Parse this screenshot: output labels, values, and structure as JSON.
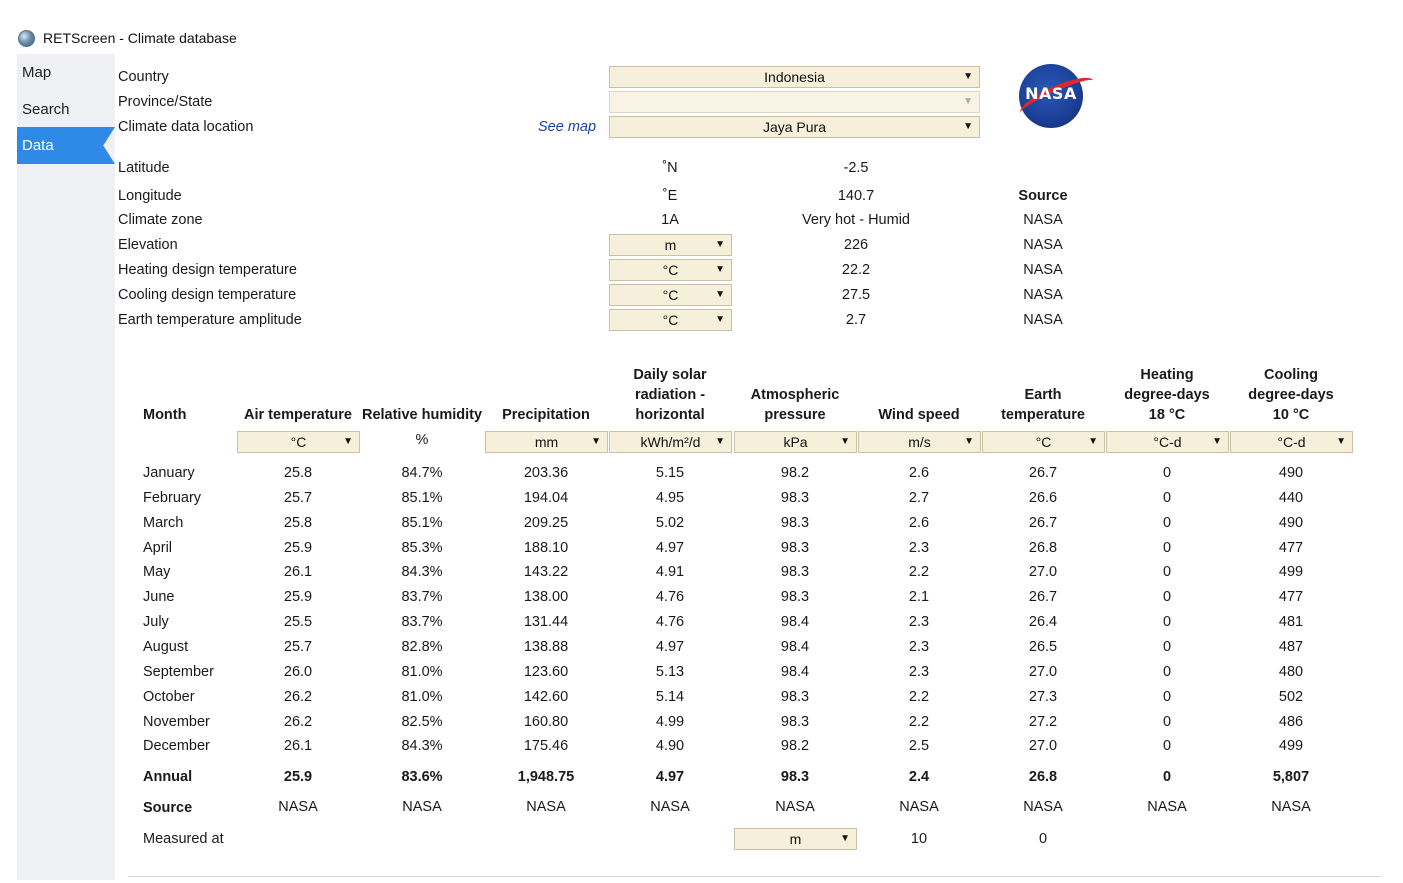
{
  "window": {
    "title": "RETScreen - Climate database",
    "icon": "globe-icon"
  },
  "sidebar": {
    "items": [
      {
        "label": "Map",
        "active": false
      },
      {
        "label": "Search",
        "active": false
      },
      {
        "label": "Data",
        "active": true
      }
    ]
  },
  "location": {
    "country_label": "Country",
    "country_value": "Indonesia",
    "province_label": "Province/State",
    "province_value": "",
    "climate_location_label": "Climate data location",
    "see_map": "See map",
    "climate_location_value": "Jaya Pura",
    "logo_text": "NASA"
  },
  "info_rows": [
    {
      "label": "Latitude",
      "unit": "˚N",
      "value": "-2.5",
      "source": ""
    },
    {
      "label": "Longitude",
      "unit": "˚E",
      "value": "140.7",
      "source": ""
    },
    {
      "label": "Climate zone",
      "unit": "1A",
      "value": "Very hot - Humid",
      "source": "NASA"
    },
    {
      "label": "Elevation",
      "unit": "m",
      "value": "226",
      "source": "NASA"
    },
    {
      "label": "Heating design temperature",
      "unit": "°C",
      "value": "22.2",
      "source": "NASA"
    },
    {
      "label": "Cooling design temperature",
      "unit": "°C",
      "value": "27.5",
      "source": "NASA"
    },
    {
      "label": "Earth temperature amplitude",
      "unit": "°C",
      "value": "2.7",
      "source": "NASA"
    }
  ],
  "source_header": "Source",
  "table": {
    "month_header": "Month",
    "columns": [
      {
        "h1": "",
        "h2": "",
        "h3": "Air temperature",
        "unit": "°C",
        "dropdown": true
      },
      {
        "h1": "",
        "h2": "",
        "h3": "Relative humidity",
        "unit": "%",
        "dropdown": false
      },
      {
        "h1": "",
        "h2": "",
        "h3": "Precipitation",
        "unit": "mm",
        "dropdown": true
      },
      {
        "h1": "Daily solar",
        "h2": "radiation -",
        "h3": "horizontal",
        "unit": "kWh/m²/d",
        "dropdown": true
      },
      {
        "h1": "",
        "h2": "Atmospheric",
        "h3": "pressure",
        "unit": "kPa",
        "dropdown": true
      },
      {
        "h1": "",
        "h2": "",
        "h3": "Wind speed",
        "unit": "m/s",
        "dropdown": true
      },
      {
        "h1": "",
        "h2": "Earth",
        "h3": "temperature",
        "unit": "°C",
        "dropdown": true
      },
      {
        "h1": "Heating",
        "h2": "degree-days",
        "h3": "18 °C",
        "unit": "°C-d",
        "dropdown": true
      },
      {
        "h1": "Cooling",
        "h2": "degree-days",
        "h3": "10 °C",
        "unit": "°C-d",
        "dropdown": true
      }
    ],
    "rows": [
      {
        "month": "January",
        "values": [
          "25.8",
          "84.7%",
          "203.36",
          "5.15",
          "98.2",
          "2.6",
          "26.7",
          "0",
          "490"
        ]
      },
      {
        "month": "February",
        "values": [
          "25.7",
          "85.1%",
          "194.04",
          "4.95",
          "98.3",
          "2.7",
          "26.6",
          "0",
          "440"
        ]
      },
      {
        "month": "March",
        "values": [
          "25.8",
          "85.1%",
          "209.25",
          "5.02",
          "98.3",
          "2.6",
          "26.7",
          "0",
          "490"
        ]
      },
      {
        "month": "April",
        "values": [
          "25.9",
          "85.3%",
          "188.10",
          "4.97",
          "98.3",
          "2.3",
          "26.8",
          "0",
          "477"
        ]
      },
      {
        "month": "May",
        "values": [
          "26.1",
          "84.3%",
          "143.22",
          "4.91",
          "98.3",
          "2.2",
          "27.0",
          "0",
          "499"
        ]
      },
      {
        "month": "June",
        "values": [
          "25.9",
          "83.7%",
          "138.00",
          "4.76",
          "98.3",
          "2.1",
          "26.7",
          "0",
          "477"
        ]
      },
      {
        "month": "July",
        "values": [
          "25.5",
          "83.7%",
          "131.44",
          "4.76",
          "98.4",
          "2.3",
          "26.4",
          "0",
          "481"
        ]
      },
      {
        "month": "August",
        "values": [
          "25.7",
          "82.8%",
          "138.88",
          "4.97",
          "98.4",
          "2.3",
          "26.5",
          "0",
          "487"
        ]
      },
      {
        "month": "September",
        "values": [
          "26.0",
          "81.0%",
          "123.60",
          "5.13",
          "98.4",
          "2.3",
          "27.0",
          "0",
          "480"
        ]
      },
      {
        "month": "October",
        "values": [
          "26.2",
          "81.0%",
          "142.60",
          "5.14",
          "98.3",
          "2.2",
          "27.3",
          "0",
          "502"
        ]
      },
      {
        "month": "November",
        "values": [
          "26.2",
          "82.5%",
          "160.80",
          "4.99",
          "98.3",
          "2.2",
          "27.2",
          "0",
          "486"
        ]
      },
      {
        "month": "December",
        "values": [
          "26.1",
          "84.3%",
          "175.46",
          "4.90",
          "98.2",
          "2.5",
          "27.0",
          "0",
          "499"
        ]
      }
    ],
    "annual": {
      "label": "Annual",
      "values": [
        "25.9",
        "83.6%",
        "1,948.75",
        "4.97",
        "98.3",
        "2.4",
        "26.8",
        "0",
        "5,807"
      ]
    },
    "source": {
      "label": "Source",
      "values": [
        "NASA",
        "NASA",
        "NASA",
        "NASA",
        "NASA",
        "NASA",
        "NASA",
        "NASA",
        "NASA"
      ]
    },
    "measured": {
      "label": "Measured at",
      "unit": "m",
      "wind": "10",
      "earth": "0"
    }
  }
}
